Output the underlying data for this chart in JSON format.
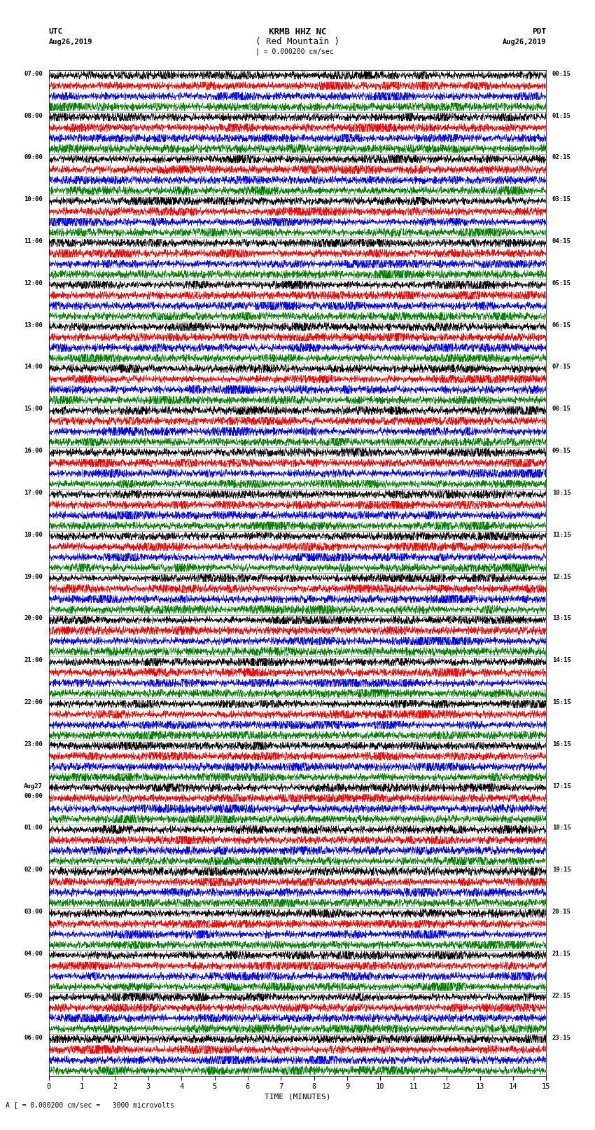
{
  "title_line1": "KRMB HHZ NC",
  "title_line2": "( Red Mountain )",
  "scale_bar": "| = 0.000200 cm/sec",
  "left_label_line1": "UTC",
  "left_label_line2": "Aug26,2019",
  "right_label_line1": "PDT",
  "right_label_line2": "Aug26,2019",
  "xlabel": "TIME (MINUTES)",
  "bottom_note": "A [ = 0.000200 cm/sec =   3000 microvolts",
  "left_times": [
    "07:00",
    "08:00",
    "09:00",
    "10:00",
    "11:00",
    "12:00",
    "13:00",
    "14:00",
    "15:00",
    "16:00",
    "17:00",
    "18:00",
    "19:00",
    "20:00",
    "21:00",
    "22:00",
    "23:00",
    "Aug27\n00:00",
    "01:00",
    "02:00",
    "03:00",
    "04:00",
    "05:00",
    "06:00"
  ],
  "right_times": [
    "00:15",
    "01:15",
    "02:15",
    "03:15",
    "04:15",
    "05:15",
    "06:15",
    "07:15",
    "08:15",
    "09:15",
    "10:15",
    "11:15",
    "12:15",
    "13:15",
    "14:15",
    "15:15",
    "16:15",
    "17:15",
    "18:15",
    "19:15",
    "20:15",
    "21:15",
    "22:15",
    "23:15"
  ],
  "num_hour_blocks": 24,
  "traces_per_block": 4,
  "colors": [
    "black",
    "red",
    "blue",
    "green"
  ],
  "fig_width": 8.5,
  "fig_height": 16.13,
  "bg_color": "white",
  "n_samples": 3000,
  "trace_amplitude": 0.38
}
